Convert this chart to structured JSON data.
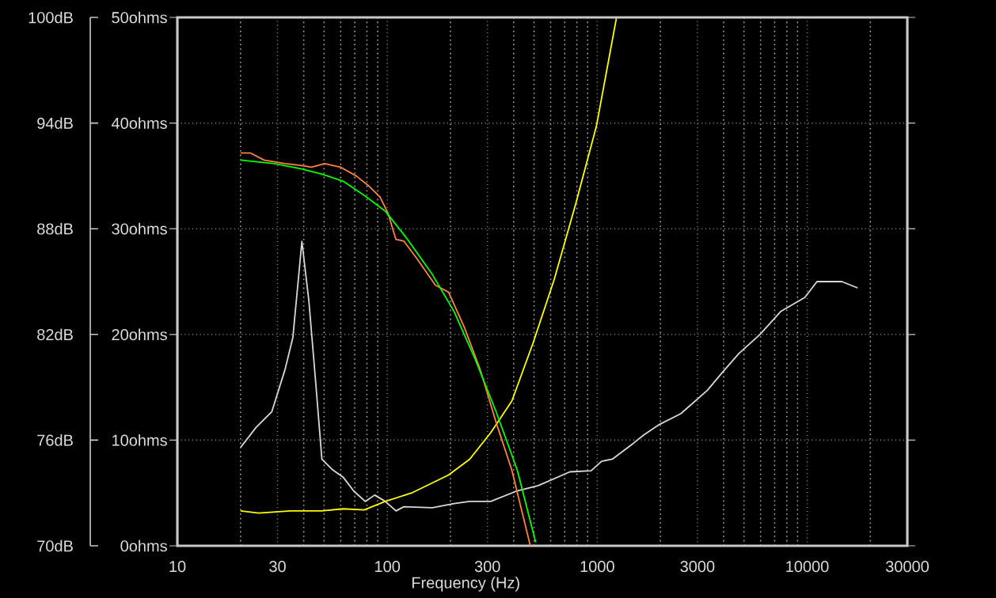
{
  "chart_data": {
    "type": "line",
    "xlabel": "Frequency (Hz)",
    "log": "x",
    "grid": true,
    "xlim": [
      10,
      30000
    ],
    "xticks": [
      10,
      30,
      100,
      300,
      1000,
      3000,
      10000,
      30000
    ],
    "ylim": [
      0,
      50
    ],
    "yticks": [
      {
        "value": 0,
        "label": "0ohms"
      },
      {
        "value": 10,
        "label": "10ohms"
      },
      {
        "value": 20,
        "label": "20ohms"
      },
      {
        "value": 30,
        "label": "30ohms"
      },
      {
        "value": 40,
        "label": "40ohms"
      },
      {
        "value": 50,
        "label": "50ohms"
      }
    ],
    "y2lim": [
      70,
      100
    ],
    "y2ticks": [
      {
        "value": 70,
        "label": "70dB"
      },
      {
        "value": 76,
        "label": "76dB"
      },
      {
        "value": 82,
        "label": "82dB"
      },
      {
        "value": 88,
        "label": "88dB"
      },
      {
        "value": 94,
        "label": "94dB"
      },
      {
        "value": 100,
        "label": "100dB"
      }
    ],
    "series": [
      {
        "color": "#d8d8d8",
        "x": [
          20,
          23.7,
          28.2,
          32.6,
          35.5,
          39.2,
          42.3,
          45.5,
          48.8,
          54.8,
          61.6,
          69.1,
          78.5,
          87.1,
          97.8,
          110,
          120,
          164,
          208,
          247,
          311,
          416,
          524,
          741,
          935,
          1050,
          1180,
          1486,
          1669,
          1986,
          2500,
          3342,
          3981,
          4730,
          5957,
          7510,
          9750,
          11140,
          14630,
          17400
        ],
        "values": [
          9.3,
          11.2,
          12.7,
          16.7,
          19.7,
          28.8,
          23.2,
          15.7,
          8.2,
          7.2,
          6.5,
          5.2,
          4.2,
          4.8,
          4.2,
          3.3,
          3.7,
          3.6,
          4.0,
          4.2,
          4.2,
          5.2,
          5.7,
          7.0,
          7.1,
          8.0,
          8.2,
          9.7,
          10.5,
          11.5,
          12.5,
          14.7,
          16.5,
          18.2,
          20.0,
          22.2,
          23.5,
          25.0,
          25.0,
          24.4
        ]
      },
      {
        "color": "#ffff00",
        "x": [
          20,
          24.4,
          34.5,
          48.8,
          61.6,
          77.6,
          97.8,
          130.6,
          195.8,
          247,
          311,
          392,
          495,
          624,
          786,
          991,
          1233
        ],
        "values": [
          3.3,
          3.1,
          3.3,
          3.3,
          3.5,
          3.4,
          4.2,
          5.0,
          6.7,
          8.2,
          10.7,
          13.7,
          19.2,
          25.2,
          32.2,
          39.7,
          49.9
        ]
      },
      {
        "color": "#ff8040",
        "axis": "y2",
        "x": [
          20,
          22.3,
          25.9,
          32.6,
          38.8,
          43.5,
          50.3,
          59.8,
          71.1,
          82.2,
          92.3,
          100.7,
          109.9,
          119.9,
          138.4,
          169.5,
          195.8,
          232.9,
          277.1,
          330,
          392,
          480
        ],
        "values": [
          92.3,
          92.3,
          91.9,
          91.7,
          91.6,
          91.5,
          91.7,
          91.5,
          91.0,
          90.4,
          89.8,
          88.9,
          87.4,
          87.3,
          86.3,
          84.8,
          84.4,
          82.4,
          80.0,
          77.0,
          74.3,
          70.0
        ]
      },
      {
        "color": "#00ff00",
        "axis": "y2",
        "x": [
          20,
          29,
          38.8,
          48.8,
          61.6,
          77.6,
          97.8,
          123,
          164,
          208,
          262,
          330,
          416,
          509
        ],
        "values": [
          91.9,
          91.7,
          91.4,
          91.1,
          90.7,
          89.9,
          89.0,
          87.5,
          85.4,
          83.3,
          80.6,
          77.6,
          74.3,
          70.2
        ]
      }
    ]
  }
}
